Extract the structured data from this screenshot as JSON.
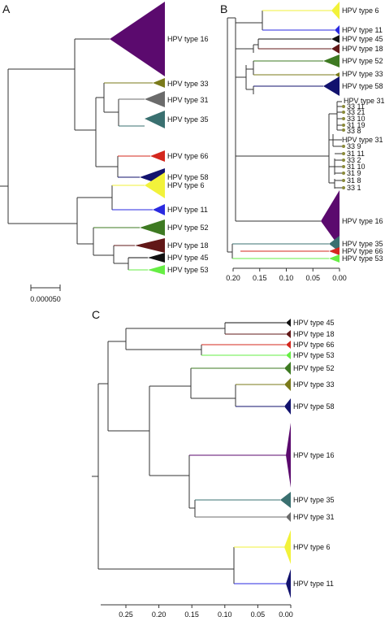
{
  "panels": {
    "a": {
      "letter": "A",
      "scale_label": "0.000050",
      "labels": [
        "HPV type 16",
        "HPV type 33",
        "HPV type 31",
        "HPV type 35",
        "HPV type 66",
        "HPV type 58",
        "HPV type 6",
        "HPV type 11",
        "HPV type 52",
        "HPV type 18",
        "HPV type 45",
        "HPV type 53"
      ]
    },
    "b": {
      "letter": "B",
      "labels": [
        "HPV type 6",
        "HPV type 11",
        "HPV type 45",
        "HPV type 18",
        "HPV type 52",
        "HPV type 33",
        "HPV type 58",
        "HPV type 31",
        "33 11",
        "33 21",
        "33 10",
        "31 19",
        "33 8",
        "HPV type 31",
        "33 9",
        "31 11",
        "33 2",
        "31 10",
        "31 9",
        "31 8",
        "33 1",
        "HPV type 16",
        "HPV type 35",
        "HPV type 66",
        "HPV type 53"
      ],
      "axis_ticks": [
        "0.20",
        "0.15",
        "0.10",
        "0.05",
        "0.00"
      ]
    },
    "c": {
      "letter": "C",
      "labels": [
        "HPV type 45",
        "HPV type 18",
        "HPV type 66",
        "HPV type 53",
        "HPV type 52",
        "HPV type 33",
        "HPV type 58",
        "HPV type 16",
        "HPV type 35",
        "HPV type 31",
        "HPV type 6",
        "HPV type 11"
      ],
      "axis_ticks": [
        "0.25",
        "0.20",
        "0.15",
        "0.10",
        "0.05",
        "0.00"
      ]
    }
  },
  "colors": {
    "hpv16": "#5b0a6e",
    "hpv33": "#7a7a1a",
    "hpv31": "#6b6b6b",
    "hpv35": "#3a7070",
    "hpv66": "#d4281e",
    "hpv58": "#12126e",
    "hpv6": "#f2f23a",
    "hpv11": "#2a2ae0",
    "hpv52": "#3e7a22",
    "hpv18": "#621818",
    "hpv45": "#111111",
    "hpv53": "#66ee44",
    "dot": "#8a8a3a"
  }
}
